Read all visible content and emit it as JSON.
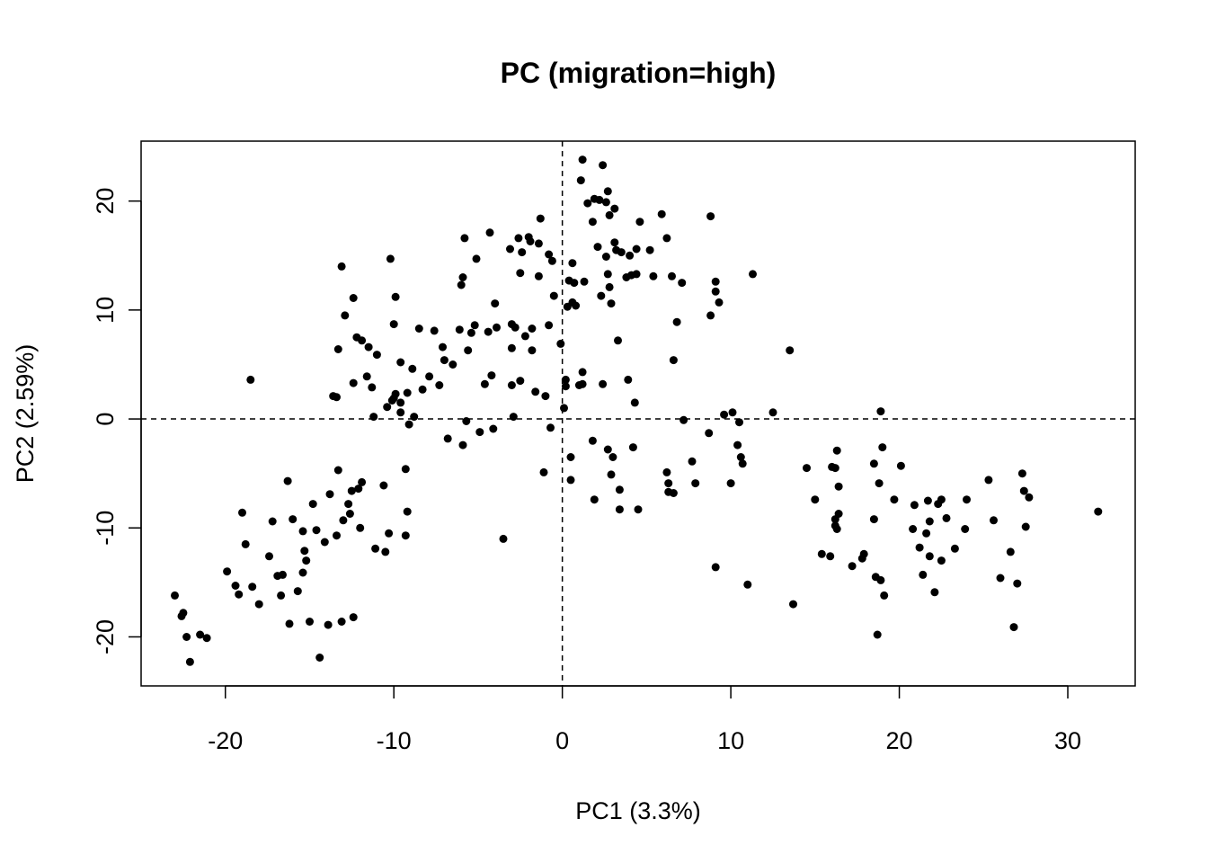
{
  "chart_data": {
    "type": "scatter",
    "title": "PC (migration=high)",
    "xlabel": "PC1 (3.3%)",
    "ylabel": "PC2 (2.59%)",
    "xlim": [
      -25,
      34
    ],
    "ylim": [
      -24.5,
      25.5
    ],
    "xticks": [
      -20,
      -10,
      0,
      10,
      20,
      30
    ],
    "yticks": [
      -20,
      -10,
      0,
      10,
      20
    ],
    "reference_lines": {
      "x": 0,
      "y": 0,
      "style": "dashed"
    },
    "grid": false,
    "legend": "none",
    "point_color": "#000000",
    "points": [
      [
        -23.0,
        -16.2
      ],
      [
        -22.6,
        -18.1
      ],
      [
        -22.5,
        -17.8
      ],
      [
        -22.3,
        -20.0
      ],
      [
        -22.1,
        -22.3
      ],
      [
        -21.5,
        -19.8
      ],
      [
        -21.1,
        -20.1
      ],
      [
        -19.9,
        -14.0
      ],
      [
        -19.4,
        -15.3
      ],
      [
        -19.2,
        -16.1
      ],
      [
        -19.0,
        -8.6
      ],
      [
        -18.8,
        -11.5
      ],
      [
        -18.4,
        -15.4
      ],
      [
        -18.0,
        -17.0
      ],
      [
        -18.5,
        3.6
      ],
      [
        -17.4,
        -12.6
      ],
      [
        -17.2,
        -9.4
      ],
      [
        -16.9,
        -14.4
      ],
      [
        -16.6,
        -14.3
      ],
      [
        -16.7,
        -16.2
      ],
      [
        -16.3,
        -5.7
      ],
      [
        -16.2,
        -18.8
      ],
      [
        -16.0,
        -9.2
      ],
      [
        -15.7,
        -15.8
      ],
      [
        -15.4,
        -10.3
      ],
      [
        -15.3,
        -12.1
      ],
      [
        -15.4,
        -14.1
      ],
      [
        -15.2,
        -13.0
      ],
      [
        -15.0,
        -18.6
      ],
      [
        -14.6,
        -10.2
      ],
      [
        -14.8,
        -7.8
      ],
      [
        -14.4,
        -21.9
      ],
      [
        -14.1,
        -11.3
      ],
      [
        -13.9,
        -18.9
      ],
      [
        -13.8,
        -6.9
      ],
      [
        -13.4,
        -10.7
      ],
      [
        -13.6,
        2.1
      ],
      [
        -13.4,
        2.0
      ],
      [
        -13.3,
        -4.7
      ],
      [
        -13.3,
        6.4
      ],
      [
        -13.1,
        14.0
      ],
      [
        -13.1,
        -18.6
      ],
      [
        -13.0,
        -9.3
      ],
      [
        -12.9,
        9.5
      ],
      [
        -12.7,
        -7.8
      ],
      [
        -12.4,
        -18.2
      ],
      [
        -12.5,
        -6.6
      ],
      [
        -12.6,
        -8.7
      ],
      [
        -12.4,
        11.1
      ],
      [
        -12.4,
        3.3
      ],
      [
        -12.2,
        7.5
      ],
      [
        -12.1,
        -6.4
      ],
      [
        -12.0,
        -10.0
      ],
      [
        -11.9,
        7.2
      ],
      [
        -11.9,
        -5.8
      ],
      [
        -11.5,
        6.6
      ],
      [
        -11.6,
        3.9
      ],
      [
        -11.3,
        2.9
      ],
      [
        -11.1,
        -11.9
      ],
      [
        -11.0,
        5.9
      ],
      [
        -11.2,
        0.2
      ],
      [
        -10.6,
        -6.1
      ],
      [
        -10.5,
        -12.2
      ],
      [
        -10.3,
        -10.5
      ],
      [
        -10.2,
        14.7
      ],
      [
        -10.4,
        1.1
      ],
      [
        -10.1,
        1.7
      ],
      [
        -10.0,
        1.9
      ],
      [
        -9.9,
        11.2
      ],
      [
        -9.9,
        2.3
      ],
      [
        -10.0,
        8.7
      ],
      [
        -9.6,
        5.2
      ],
      [
        -9.6,
        1.5
      ],
      [
        -9.6,
        0.6
      ],
      [
        -9.3,
        -4.6
      ],
      [
        -9.1,
        -0.5
      ],
      [
        -9.3,
        -10.7
      ],
      [
        -9.2,
        2.4
      ],
      [
        -9.2,
        -8.5
      ],
      [
        -8.9,
        4.6
      ],
      [
        -8.8,
        0.2
      ],
      [
        -8.5,
        8.3
      ],
      [
        -7.9,
        3.9
      ],
      [
        -8.3,
        2.7
      ],
      [
        -7.6,
        8.1
      ],
      [
        -7.3,
        3.1
      ],
      [
        -6.8,
        -1.8
      ],
      [
        -7.1,
        6.6
      ],
      [
        -7.0,
        5.4
      ],
      [
        -6.5,
        5.0
      ],
      [
        -6.1,
        8.2
      ],
      [
        -6.0,
        12.3
      ],
      [
        -5.8,
        16.6
      ],
      [
        -5.9,
        13.0
      ],
      [
        -5.7,
        -0.2
      ],
      [
        -5.9,
        -2.4
      ],
      [
        -5.6,
        6.3
      ],
      [
        -5.4,
        7.9
      ],
      [
        -5.1,
        14.7
      ],
      [
        -5.2,
        8.6
      ],
      [
        -4.9,
        -1.2
      ],
      [
        -4.6,
        3.2
      ],
      [
        -4.4,
        8.0
      ],
      [
        -4.3,
        17.1
      ],
      [
        -4.2,
        4.0
      ],
      [
        -4.0,
        10.6
      ],
      [
        -4.1,
        -0.9
      ],
      [
        -3.9,
        8.4
      ],
      [
        -3.5,
        -11.0
      ],
      [
        -3.1,
        15.6
      ],
      [
        -3.0,
        8.7
      ],
      [
        -3.0,
        3.1
      ],
      [
        -3.0,
        6.5
      ],
      [
        -2.9,
        0.2
      ],
      [
        -2.8,
        8.4
      ],
      [
        -2.6,
        16.6
      ],
      [
        -2.5,
        13.4
      ],
      [
        -2.4,
        15.3
      ],
      [
        -2.5,
        3.5
      ],
      [
        -2.2,
        7.6
      ],
      [
        -2.0,
        16.7
      ],
      [
        -1.9,
        16.3
      ],
      [
        -1.8,
        6.3
      ],
      [
        -1.8,
        8.3
      ],
      [
        -1.6,
        2.5
      ],
      [
        -1.4,
        13.1
      ],
      [
        -1.4,
        16.1
      ],
      [
        -1.3,
        18.4
      ],
      [
        -1.1,
        -4.9
      ],
      [
        -1.0,
        2.1
      ],
      [
        -0.8,
        8.6
      ],
      [
        -0.8,
        15.1
      ],
      [
        -0.7,
        -0.8
      ],
      [
        -0.6,
        14.5
      ],
      [
        -0.5,
        11.3
      ],
      [
        -0.1,
        6.9
      ],
      [
        0.1,
        1.0
      ],
      [
        0.2,
        3.0
      ],
      [
        0.2,
        3.6
      ],
      [
        0.3,
        10.3
      ],
      [
        0.4,
        12.7
      ],
      [
        0.5,
        -3.5
      ],
      [
        0.6,
        14.3
      ],
      [
        0.5,
        -5.6
      ],
      [
        0.6,
        10.7
      ],
      [
        0.7,
        12.5
      ],
      [
        0.8,
        10.4
      ],
      [
        1.0,
        3.1
      ],
      [
        1.1,
        21.9
      ],
      [
        1.2,
        23.8
      ],
      [
        1.2,
        4.3
      ],
      [
        1.2,
        3.2
      ],
      [
        1.3,
        12.6
      ],
      [
        1.5,
        19.8
      ],
      [
        1.8,
        18.1
      ],
      [
        1.8,
        -2.0
      ],
      [
        1.9,
        20.2
      ],
      [
        1.9,
        -7.4
      ],
      [
        2.1,
        15.8
      ],
      [
        2.2,
        20.1
      ],
      [
        2.3,
        11.3
      ],
      [
        2.4,
        23.3
      ],
      [
        2.4,
        3.2
      ],
      [
        2.6,
        19.9
      ],
      [
        2.6,
        14.9
      ],
      [
        2.7,
        13.3
      ],
      [
        2.7,
        20.9
      ],
      [
        2.7,
        -2.8
      ],
      [
        2.8,
        18.7
      ],
      [
        2.8,
        12.1
      ],
      [
        2.9,
        10.6
      ],
      [
        2.9,
        -5.1
      ],
      [
        3.0,
        -3.5
      ],
      [
        3.1,
        16.2
      ],
      [
        3.1,
        19.3
      ],
      [
        3.2,
        15.5
      ],
      [
        3.3,
        7.2
      ],
      [
        3.4,
        -6.5
      ],
      [
        3.4,
        -8.3
      ],
      [
        3.5,
        15.3
      ],
      [
        3.8,
        13.0
      ],
      [
        3.9,
        3.6
      ],
      [
        4.0,
        15.0
      ],
      [
        4.1,
        13.2
      ],
      [
        4.2,
        -2.6
      ],
      [
        4.3,
        1.5
      ],
      [
        4.4,
        13.3
      ],
      [
        4.4,
        15.6
      ],
      [
        4.5,
        -8.3
      ],
      [
        4.6,
        18.1
      ],
      [
        5.2,
        15.5
      ],
      [
        5.4,
        13.1
      ],
      [
        5.9,
        18.8
      ],
      [
        6.2,
        -4.9
      ],
      [
        6.3,
        -6.7
      ],
      [
        6.3,
        -5.9
      ],
      [
        6.2,
        16.6
      ],
      [
        6.5,
        13.1
      ],
      [
        6.6,
        -6.8
      ],
      [
        6.6,
        5.4
      ],
      [
        6.8,
        8.9
      ],
      [
        7.1,
        12.5
      ],
      [
        7.2,
        -0.1
      ],
      [
        7.7,
        -3.9
      ],
      [
        7.9,
        -5.9
      ],
      [
        8.7,
        -1.3
      ],
      [
        8.8,
        9.5
      ],
      [
        8.8,
        18.6
      ],
      [
        9.1,
        12.6
      ],
      [
        9.1,
        11.7
      ],
      [
        9.1,
        -13.6
      ],
      [
        9.3,
        10.7
      ],
      [
        9.6,
        0.4
      ],
      [
        10.0,
        -5.9
      ],
      [
        10.1,
        0.6
      ],
      [
        10.4,
        -2.4
      ],
      [
        10.5,
        -0.3
      ],
      [
        10.6,
        -3.5
      ],
      [
        10.7,
        -4.1
      ],
      [
        11.0,
        -15.2
      ],
      [
        11.3,
        13.3
      ],
      [
        12.5,
        0.6
      ],
      [
        13.5,
        6.3
      ],
      [
        13.7,
        -17.0
      ],
      [
        14.5,
        -4.5
      ],
      [
        15.0,
        -7.4
      ],
      [
        15.4,
        -12.4
      ],
      [
        15.9,
        -12.6
      ],
      [
        16.0,
        -4.4
      ],
      [
        16.2,
        -4.5
      ],
      [
        16.2,
        -9.2
      ],
      [
        16.2,
        -9.8
      ],
      [
        16.3,
        -2.9
      ],
      [
        16.3,
        -10.1
      ],
      [
        16.4,
        -8.7
      ],
      [
        16.4,
        -6.2
      ],
      [
        17.2,
        -13.5
      ],
      [
        17.8,
        -12.8
      ],
      [
        17.9,
        -12.4
      ],
      [
        18.5,
        -4.1
      ],
      [
        18.5,
        -9.2
      ],
      [
        18.6,
        -14.5
      ],
      [
        18.7,
        -19.8
      ],
      [
        18.8,
        -5.9
      ],
      [
        18.9,
        0.7
      ],
      [
        18.9,
        -14.8
      ],
      [
        19.0,
        -2.6
      ],
      [
        19.1,
        -16.2
      ],
      [
        19.7,
        -7.4
      ],
      [
        20.1,
        -4.3
      ],
      [
        20.8,
        -10.1
      ],
      [
        20.9,
        -7.9
      ],
      [
        21.2,
        -11.8
      ],
      [
        21.4,
        -14.3
      ],
      [
        21.6,
        -10.5
      ],
      [
        21.7,
        -7.5
      ],
      [
        21.8,
        -9.4
      ],
      [
        21.8,
        -12.6
      ],
      [
        22.1,
        -15.9
      ],
      [
        22.3,
        -7.8
      ],
      [
        22.5,
        -7.4
      ],
      [
        22.5,
        -13.0
      ],
      [
        22.8,
        -9.1
      ],
      [
        23.3,
        -11.9
      ],
      [
        23.9,
        -10.1
      ],
      [
        24.0,
        -7.4
      ],
      [
        25.3,
        -5.6
      ],
      [
        25.6,
        -9.3
      ],
      [
        26.0,
        -14.6
      ],
      [
        26.6,
        -12.2
      ],
      [
        26.8,
        -19.1
      ],
      [
        27.0,
        -15.1
      ],
      [
        27.3,
        -5.0
      ],
      [
        27.4,
        -6.6
      ],
      [
        27.5,
        -9.9
      ],
      [
        27.7,
        -7.2
      ],
      [
        31.8,
        -8.5
      ]
    ]
  }
}
